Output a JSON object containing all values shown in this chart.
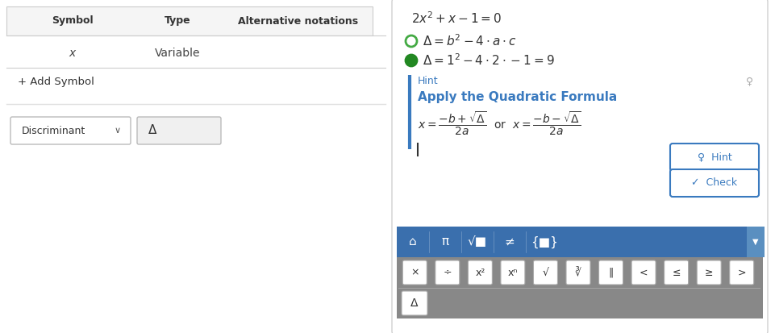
{
  "bg_color": "#ffffff",
  "table_header_bg": "#f5f5f5",
  "table_header_color": "#333333",
  "table_border_color": "#cccccc",
  "table_headers": [
    "Symbol",
    "Type",
    "Alternative notations"
  ],
  "table_row": [
    "x",
    "Variable",
    ""
  ],
  "add_symbol_text": "+ Add Symbol",
  "dropdown_text": "Discriminant",
  "input_box_text": "Δ",
  "hint_label": "Hint",
  "hint_title": "Apply the Quadratic Formula",
  "hint_btn_text": "Hint",
  "check_btn_text": "Check",
  "toolbar_blue": "#3a6fad",
  "toolbar_blue_light": "#5a8fc0",
  "toolbar_gray": "#888888",
  "toolbar_gray2": "#777777",
  "toolbar_delta": "Δ",
  "circle_empty_color": "#44aa44",
  "circle_filled_color": "#228822",
  "hint_color": "#3a7abf",
  "left_border_color": "#3a7abf",
  "btn_border_color": "#3a7abf",
  "btn_text_color": "#3a7abf",
  "right_panel_border": "#d0d0d0"
}
